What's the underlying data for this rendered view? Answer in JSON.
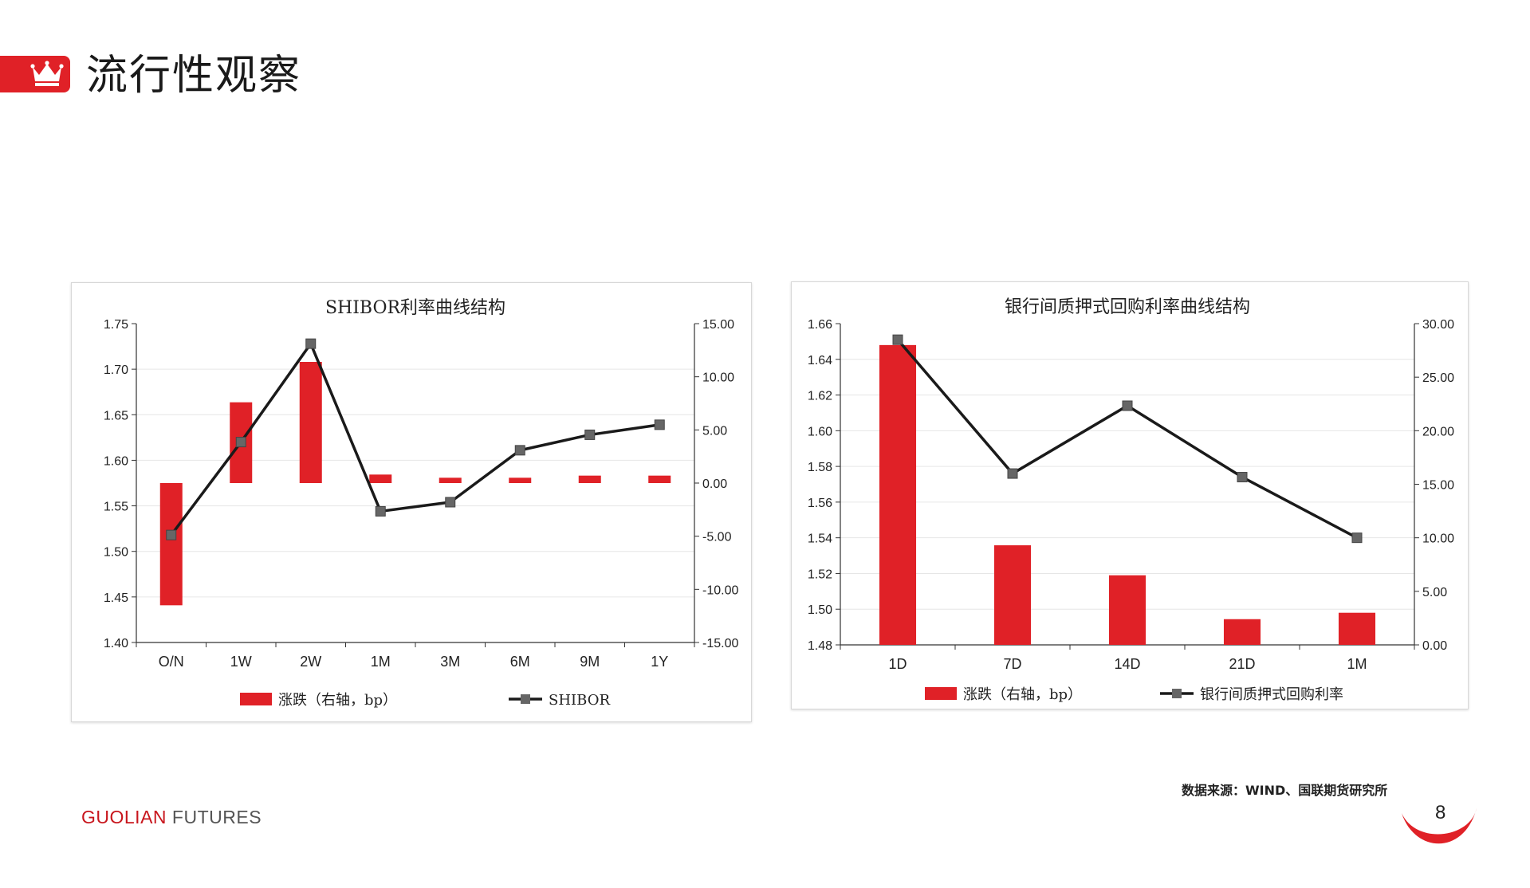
{
  "header": {
    "title": "流行性观察",
    "brand_color": "#e02127"
  },
  "charts": [
    {
      "title": "SHIBOR利率曲线结构",
      "left_ticks": [
        "1.75",
        "1.70",
        "1.65",
        "1.60",
        "1.55",
        "1.50",
        "1.45",
        "1.40"
      ],
      "right_ticks": [
        "15.00",
        "10.00",
        "5.00",
        "0.00",
        "-5.00",
        "-10.00",
        "-15.00"
      ],
      "legend": {
        "bar_label": "涨跌（右轴，bp）",
        "line_label": "SHIBOR"
      }
    },
    {
      "title": "银行间质押式回购利率曲线结构",
      "left_ticks": [
        "1.66",
        "1.64",
        "1.62",
        "1.60",
        "1.58",
        "1.56",
        "1.54",
        "1.52",
        "1.50",
        "1.48"
      ],
      "right_ticks": [
        "30.00",
        "25.00",
        "20.00",
        "15.00",
        "10.00",
        "5.00",
        "0.00"
      ],
      "legend": {
        "bar_label": "涨跌（右轴，bp）",
        "line_label": "银行间质押式回购利率"
      }
    }
  ],
  "chart_data": [
    {
      "type": "bar",
      "title": "SHIBOR利率曲线结构",
      "categories": [
        "O/N",
        "1W",
        "2W",
        "1M",
        "3M",
        "6M",
        "9M",
        "1Y"
      ],
      "series": [
        {
          "name": "涨跌（右轴，bp）",
          "type": "bar",
          "axis": "right",
          "color": "#e02127",
          "values": [
            -11.5,
            7.6,
            11.4,
            0.8,
            0.5,
            0.5,
            0.7,
            0.7
          ]
        },
        {
          "name": "SHIBOR",
          "type": "line",
          "axis": "left",
          "color": "#1a1a1a",
          "values": [
            1.518,
            1.62,
            1.728,
            1.544,
            1.554,
            1.611,
            1.628,
            1.639
          ]
        }
      ],
      "ylim_left": [
        1.4,
        1.75
      ],
      "ylim_right": [
        -15,
        15
      ],
      "legend_position": "bottom",
      "grid": true
    },
    {
      "type": "bar",
      "title": "银行间质押式回购利率曲线结构",
      "categories": [
        "1D",
        "7D",
        "14D",
        "21D",
        "1M"
      ],
      "series": [
        {
          "name": "涨跌（右轴，bp）",
          "type": "bar",
          "axis": "right",
          "color": "#e02127",
          "values": [
            28.0,
            9.3,
            6.5,
            2.4,
            3.0
          ]
        },
        {
          "name": "银行间质押式回购利率",
          "type": "line",
          "axis": "left",
          "color": "#1a1a1a",
          "values": [
            1.651,
            1.576,
            1.614,
            1.574,
            1.54
          ]
        }
      ],
      "ylim_left": [
        1.48,
        1.66
      ],
      "ylim_right": [
        0,
        30
      ],
      "legend_position": "bottom",
      "grid": true
    }
  ],
  "source": "数据来源：WIND、国联期货研究所",
  "footer": {
    "brand_part1": "GUOLIAN",
    "brand_part2": "FUTURES"
  },
  "page_number": "8"
}
